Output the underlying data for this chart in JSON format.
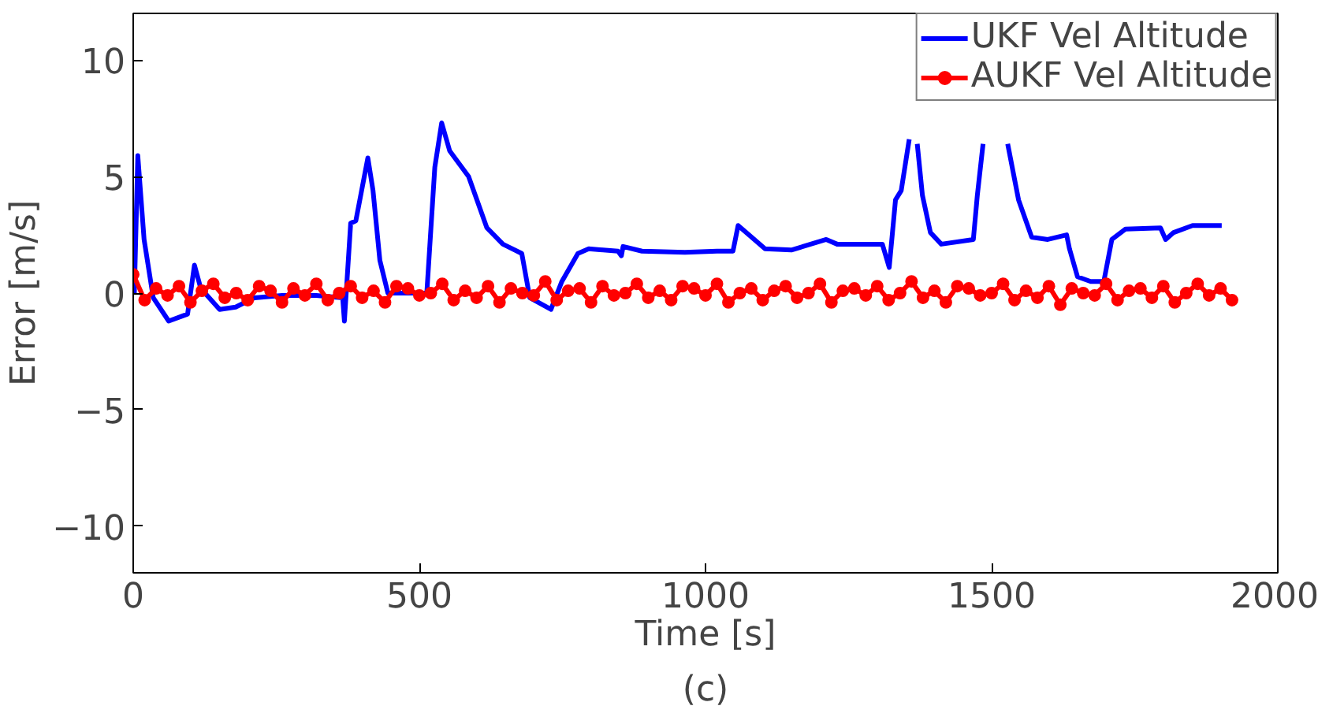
{
  "chart_data": {
    "type": "line",
    "xlabel": "Time [s]",
    "ylabel": "Error [m/s]",
    "annotations": [
      "(c)"
    ],
    "xlim": [
      0,
      2000
    ],
    "xticks": [
      0,
      500,
      1000,
      1500,
      2000
    ],
    "ylim": [
      -12,
      12
    ],
    "yticks": [
      -10,
      -5,
      0,
      5,
      10
    ],
    "grid": false,
    "legend": "top right",
    "series": [
      {
        "name": "UKF Vel Altitude",
        "color": "#0000ff",
        "marker": "none",
        "x": [
          2,
          8,
          19,
          35,
          62,
          95,
          107,
          118,
          151,
          179,
          212,
          260,
          320,
          366,
          369,
          380,
          389,
          410,
          419,
          431,
          445,
          480,
          513,
          527,
          539,
          553,
          586,
          618,
          646,
          679,
          693,
          730,
          749,
          777,
          796,
          847,
          853,
          856,
          889,
          964,
          1020,
          1048,
          1057,
          1071,
          1104,
          1150,
          1211,
          1230,
          1309,
          1321,
          1332,
          1342,
          1356,
          1363,
          1370,
          1379,
          1393,
          1412,
          1468,
          1475,
          1485,
          1506,
          1528,
          1547,
          1570,
          1598,
          1631,
          1636,
          1650,
          1673,
          1696,
          1710,
          1734,
          1795,
          1804,
          1818,
          1851,
          1902
        ],
        "values": [
          0,
          5.9,
          2.3,
          -0.2,
          -1.2,
          -0.9,
          1.2,
          0.2,
          -0.7,
          -0.6,
          -0.2,
          -0.1,
          -0.1,
          -0.2,
          -1.2,
          3.0,
          3.1,
          5.8,
          4.4,
          1.4,
          0,
          0,
          0,
          5.4,
          7.3,
          6.1,
          5.0,
          2.8,
          2.1,
          1.7,
          -0.2,
          -0.7,
          0.5,
          1.7,
          1.9,
          1.8,
          1.6,
          2.0,
          1.8,
          1.75,
          1.8,
          1.8,
          2.9,
          2.6,
          1.9,
          1.85,
          2.3,
          2.1,
          2.1,
          1.1,
          4.0,
          4.4,
          6.6,
          null,
          6.4,
          4.2,
          2.6,
          2.1,
          2.3,
          4.2,
          6.4,
          null,
          6.4,
          4.0,
          2.4,
          2.3,
          2.5,
          1.9,
          0.7,
          0.5,
          0.5,
          2.3,
          2.75,
          2.8,
          2.3,
          2.6,
          2.9,
          2.9
        ]
      },
      {
        "name": "AUKF Vel Altitude",
        "color": "#ff0000",
        "marker": "circle",
        "x": [
          0,
          20,
          40,
          60,
          80,
          100,
          120,
          140,
          160,
          180,
          200,
          220,
          240,
          260,
          280,
          300,
          320,
          340,
          360,
          380,
          400,
          420,
          440,
          460,
          480,
          500,
          520,
          540,
          560,
          580,
          600,
          620,
          640,
          660,
          680,
          700,
          720,
          740,
          760,
          780,
          800,
          820,
          840,
          860,
          880,
          900,
          920,
          940,
          960,
          980,
          1000,
          1020,
          1040,
          1060,
          1080,
          1100,
          1120,
          1140,
          1160,
          1180,
          1200,
          1220,
          1240,
          1260,
          1280,
          1300,
          1320,
          1340,
          1360,
          1380,
          1400,
          1420,
          1440,
          1460,
          1480,
          1500,
          1520,
          1540,
          1560,
          1580,
          1600,
          1620,
          1640,
          1660,
          1680,
          1700,
          1720,
          1740,
          1760,
          1780,
          1800,
          1820,
          1840,
          1860,
          1880,
          1900,
          1920
        ],
        "values": [
          0.8,
          -0.3,
          0.2,
          -0.1,
          0.3,
          -0.4,
          0.1,
          0.4,
          -0.2,
          0.0,
          -0.3,
          0.3,
          0.1,
          -0.4,
          0.2,
          -0.1,
          0.4,
          -0.3,
          0.0,
          0.3,
          -0.2,
          0.1,
          -0.4,
          0.3,
          0.2,
          -0.1,
          0.0,
          0.4,
          -0.3,
          0.1,
          -0.2,
          0.3,
          -0.4,
          0.2,
          0.0,
          -0.1,
          0.5,
          -0.3,
          0.1,
          0.2,
          -0.4,
          0.3,
          -0.1,
          0.0,
          0.4,
          -0.2,
          0.1,
          -0.3,
          0.3,
          0.2,
          -0.1,
          0.4,
          -0.4,
          0.0,
          0.2,
          -0.3,
          0.1,
          0.3,
          -0.2,
          0.0,
          0.4,
          -0.4,
          0.1,
          0.2,
          -0.1,
          0.3,
          -0.3,
          0.0,
          0.5,
          -0.2,
          0.1,
          -0.4,
          0.3,
          0.2,
          -0.1,
          0.0,
          0.4,
          -0.3,
          0.1,
          -0.2,
          0.3,
          -0.5,
          0.2,
          0.0,
          -0.1,
          0.4,
          -0.3,
          0.1,
          0.2,
          -0.2,
          0.3,
          -0.4,
          0.0,
          0.4,
          -0.1,
          0.2,
          -0.3
        ]
      }
    ]
  }
}
